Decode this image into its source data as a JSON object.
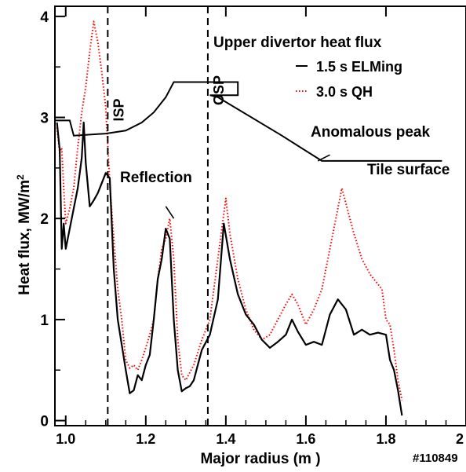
{
  "chart_data": {
    "type": "line",
    "title": "Upper divertor  heat flux",
    "xlabel": "Major radius (m )",
    "ylabel": "Heat flux, MW/m",
    "ylabel_superscript": "2",
    "xlim": [
      0.973,
      2.0
    ],
    "ylim": [
      -0.05,
      4.1
    ],
    "x_ticks": [
      {
        "value": 1.0,
        "label": "1.0"
      },
      {
        "value": 1.2,
        "label": "1.2"
      },
      {
        "value": 1.4,
        "label": "1.4"
      },
      {
        "value": 1.6,
        "label": "1.6"
      },
      {
        "value": 1.8,
        "label": "1.8"
      },
      {
        "value": 2.0,
        "label": "2"
      }
    ],
    "y_ticks": [
      {
        "value": 0,
        "label": "0"
      },
      {
        "value": 1,
        "label": "1"
      },
      {
        "value": 2,
        "label": "2"
      },
      {
        "value": 3,
        "label": "3"
      },
      {
        "value": 4,
        "label": "4"
      }
    ],
    "grid": false,
    "legend_position": "top-right",
    "shot_label": "#110849",
    "series": [
      {
        "name": "1.5 s ELMing",
        "style": "solid",
        "color": "#000000",
        "points": [
          [
            0.978,
            2.95
          ],
          [
            0.985,
            2.68
          ],
          [
            0.99,
            1.7
          ],
          [
            0.995,
            1.95
          ],
          [
            1.0,
            1.7
          ],
          [
            1.01,
            1.9
          ],
          [
            1.02,
            2.1
          ],
          [
            1.03,
            2.3
          ],
          [
            1.04,
            2.6
          ],
          [
            1.045,
            2.95
          ],
          [
            1.05,
            2.55
          ],
          [
            1.06,
            2.12
          ],
          [
            1.07,
            2.18
          ],
          [
            1.08,
            2.25
          ],
          [
            1.09,
            2.35
          ],
          [
            1.1,
            2.45
          ],
          [
            1.11,
            2.4
          ],
          [
            1.12,
            1.5
          ],
          [
            1.13,
            1.0
          ],
          [
            1.14,
            0.75
          ],
          [
            1.15,
            0.5
          ],
          [
            1.16,
            0.27
          ],
          [
            1.17,
            0.3
          ],
          [
            1.18,
            0.45
          ],
          [
            1.19,
            0.4
          ],
          [
            1.2,
            0.55
          ],
          [
            1.21,
            0.65
          ],
          [
            1.22,
            1.0
          ],
          [
            1.23,
            1.4
          ],
          [
            1.24,
            1.6
          ],
          [
            1.25,
            1.9
          ],
          [
            1.26,
            1.8
          ],
          [
            1.27,
            1.0
          ],
          [
            1.28,
            0.5
          ],
          [
            1.29,
            0.29
          ],
          [
            1.3,
            0.32
          ],
          [
            1.31,
            0.34
          ],
          [
            1.32,
            0.4
          ],
          [
            1.33,
            0.55
          ],
          [
            1.34,
            0.7
          ],
          [
            1.36,
            0.85
          ],
          [
            1.38,
            1.2
          ],
          [
            1.395,
            1.95
          ],
          [
            1.41,
            1.6
          ],
          [
            1.43,
            1.25
          ],
          [
            1.45,
            1.05
          ],
          [
            1.47,
            0.95
          ],
          [
            1.49,
            0.8
          ],
          [
            1.51,
            0.72
          ],
          [
            1.53,
            0.78
          ],
          [
            1.55,
            0.85
          ],
          [
            1.565,
            1.0
          ],
          [
            1.58,
            0.88
          ],
          [
            1.6,
            0.75
          ],
          [
            1.62,
            0.78
          ],
          [
            1.64,
            0.75
          ],
          [
            1.66,
            1.05
          ],
          [
            1.68,
            1.2
          ],
          [
            1.7,
            1.1
          ],
          [
            1.72,
            0.85
          ],
          [
            1.74,
            0.9
          ],
          [
            1.76,
            0.85
          ],
          [
            1.78,
            0.87
          ],
          [
            1.8,
            0.85
          ],
          [
            1.81,
            0.6
          ],
          [
            1.82,
            0.5
          ],
          [
            1.83,
            0.3
          ],
          [
            1.84,
            0.05
          ]
        ]
      },
      {
        "name": "3.0 s QH",
        "style": "dotted",
        "color": "#ff0000",
        "points": [
          [
            0.978,
            2.9
          ],
          [
            0.985,
            2.65
          ],
          [
            0.99,
            2.7
          ],
          [
            0.995,
            2.3
          ],
          [
            1.0,
            1.95
          ],
          [
            1.01,
            2.1
          ],
          [
            1.02,
            2.3
          ],
          [
            1.03,
            2.7
          ],
          [
            1.04,
            3.05
          ],
          [
            1.05,
            3.3
          ],
          [
            1.06,
            3.65
          ],
          [
            1.07,
            3.95
          ],
          [
            1.08,
            3.75
          ],
          [
            1.09,
            3.45
          ],
          [
            1.1,
            3.1
          ],
          [
            1.11,
            2.35
          ],
          [
            1.12,
            1.8
          ],
          [
            1.13,
            1.3
          ],
          [
            1.14,
            1.0
          ],
          [
            1.15,
            0.6
          ],
          [
            1.16,
            0.52
          ],
          [
            1.17,
            0.55
          ],
          [
            1.18,
            0.5
          ],
          [
            1.19,
            0.6
          ],
          [
            1.2,
            0.72
          ],
          [
            1.21,
            0.85
          ],
          [
            1.22,
            1.0
          ],
          [
            1.23,
            1.4
          ],
          [
            1.24,
            1.7
          ],
          [
            1.25,
            1.8
          ],
          [
            1.26,
            2.0
          ],
          [
            1.27,
            1.6
          ],
          [
            1.28,
            0.8
          ],
          [
            1.29,
            0.45
          ],
          [
            1.3,
            0.4
          ],
          [
            1.32,
            0.55
          ],
          [
            1.34,
            0.8
          ],
          [
            1.36,
            1.0
          ],
          [
            1.38,
            1.6
          ],
          [
            1.4,
            2.2
          ],
          [
            1.41,
            1.85
          ],
          [
            1.43,
            1.4
          ],
          [
            1.45,
            1.1
          ],
          [
            1.47,
            0.9
          ],
          [
            1.49,
            0.8
          ],
          [
            1.51,
            0.85
          ],
          [
            1.53,
            1.0
          ],
          [
            1.55,
            1.15
          ],
          [
            1.565,
            1.25
          ],
          [
            1.58,
            1.15
          ],
          [
            1.6,
            0.95
          ],
          [
            1.62,
            1.1
          ],
          [
            1.64,
            1.3
          ],
          [
            1.66,
            1.7
          ],
          [
            1.68,
            2.1
          ],
          [
            1.69,
            2.3
          ],
          [
            1.7,
            2.15
          ],
          [
            1.72,
            1.85
          ],
          [
            1.74,
            1.6
          ],
          [
            1.76,
            1.45
          ],
          [
            1.78,
            1.35
          ],
          [
            1.79,
            1.3
          ],
          [
            1.8,
            1.0
          ],
          [
            1.81,
            0.95
          ],
          [
            1.82,
            0.7
          ],
          [
            1.83,
            0.4
          ],
          [
            1.84,
            0.2
          ]
        ]
      }
    ],
    "tile_surface": {
      "label": "Tile surface",
      "points": [
        [
          0.975,
          2.97
        ],
        [
          1.01,
          2.97
        ],
        [
          1.02,
          2.82
        ],
        [
          1.1,
          2.84
        ],
        [
          1.15,
          2.87
        ],
        [
          1.19,
          2.95
        ],
        [
          1.22,
          3.05
        ],
        [
          1.25,
          3.2
        ],
        [
          1.27,
          3.35
        ],
        [
          1.29,
          3.35
        ],
        [
          1.43,
          3.35
        ],
        [
          1.43,
          3.22
        ],
        [
          1.36,
          3.22
        ],
        [
          1.38,
          3.2
        ],
        [
          1.54,
          2.82
        ],
        [
          1.64,
          2.57
        ],
        [
          1.94,
          2.57
        ]
      ]
    },
    "vertical_markers": [
      {
        "x": 1.105,
        "label": "ISP"
      },
      {
        "x": 1.355,
        "label": "OSP"
      }
    ],
    "annotations": [
      {
        "text": "Reflection",
        "arrow_from": [
          1.25,
          2.12
        ],
        "arrow_to": [
          1.27,
          2.0
        ]
      },
      {
        "text": "Anomalous peak",
        "arrow_from": [
          1.66,
          2.63
        ],
        "arrow_to": [
          1.63,
          2.57
        ]
      }
    ]
  }
}
